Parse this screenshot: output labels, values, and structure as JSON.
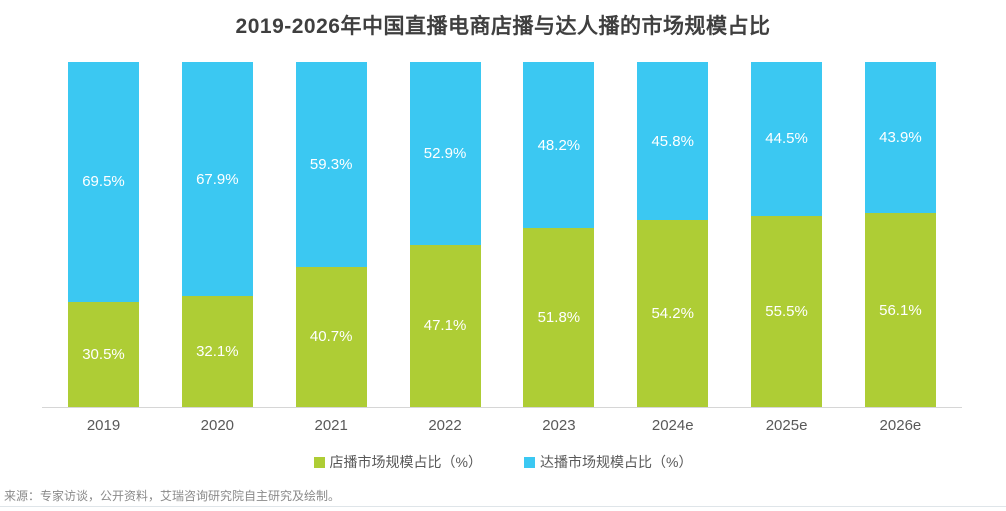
{
  "title": "2019-2026年中国直播电商店播与达人播的市场规模占比",
  "chart_data": {
    "type": "bar",
    "stacked": true,
    "unit": "%",
    "categories": [
      "2019",
      "2020",
      "2021",
      "2022",
      "2023",
      "2024e",
      "2025e",
      "2026e"
    ],
    "series": [
      {
        "name": "店播市场规模占比（%）",
        "color": "#aecd35",
        "values": [
          30.5,
          32.1,
          40.7,
          47.1,
          51.8,
          54.2,
          55.5,
          56.1
        ]
      },
      {
        "name": "达播市场规模占比（%）",
        "color": "#3bc8f2",
        "values": [
          69.5,
          67.9,
          59.3,
          52.9,
          48.2,
          45.8,
          44.5,
          43.9
        ]
      }
    ],
    "ylim": [
      0,
      100
    ],
    "grid": false,
    "value_labels": "inside",
    "legend_position": "bottom"
  },
  "legend": [
    {
      "label": "店播市场规模占比（%）",
      "color": "#aecd35"
    },
    {
      "label": "达播市场规模占比（%）",
      "color": "#3bc8f2"
    }
  ],
  "source_note": "来源：专家访谈，公开资料，艾瑞咨询研究院自主研究及绘制。",
  "colors": {
    "store_green": "#aecd35",
    "influencer_blue": "#3bc8f2",
    "title_text": "#3f3f3f",
    "axis_line": "#d6d6d6",
    "tick_label": "#595959",
    "source_text": "#8a8a8a"
  }
}
